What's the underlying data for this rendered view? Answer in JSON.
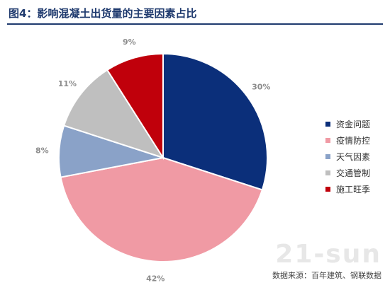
{
  "header": {
    "title": "图4：影响混凝土出货量的主要因素占比"
  },
  "chart_data": {
    "type": "pie",
    "title": "图4：影响混凝土出货量的主要因素占比",
    "slices": [
      {
        "label": "资金问题",
        "value": 30,
        "value_label": "30%",
        "color": "#0b2f7a"
      },
      {
        "label": "疫情防控",
        "value": 42,
        "value_label": "42%",
        "color": "#f09aa4"
      },
      {
        "label": "天气因素",
        "value": 8,
        "value_label": "8%",
        "color": "#8aa2c8"
      },
      {
        "label": "交通管制",
        "value": 11,
        "value_label": "11%",
        "color": "#bfbfbf"
      },
      {
        "label": "施工旺季",
        "value": 9,
        "value_label": "9%",
        "color": "#c0000b"
      }
    ],
    "start_angle": "12 o'clock",
    "direction": "clockwise",
    "legend_position": "right"
  },
  "footer": {
    "source": "数据来源：百年建筑、钢联数据",
    "watermark": "21-sun"
  }
}
